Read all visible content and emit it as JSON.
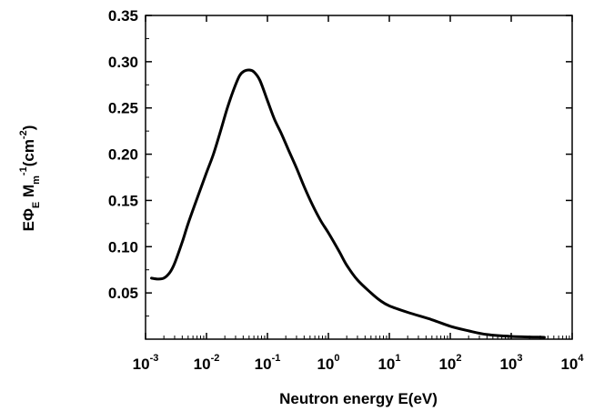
{
  "chart_data": {
    "type": "line",
    "title": "",
    "xlabel": "Neutron energy E(eV)",
    "ylabel_parts": {
      "e": "E",
      "phi": "Φ",
      "phi_sub": "E",
      "m": " M",
      "m_sub": "m",
      "m_sup": "-1",
      "unit_open": "(cm",
      "unit_sup": "-2",
      "unit_close": ")"
    },
    "x_scale": "log",
    "xlim": [
      0.001,
      10000
    ],
    "ylim": [
      0.0,
      0.35
    ],
    "x_ticks": [
      {
        "base": "10",
        "exp": "-3",
        "value": 0.001
      },
      {
        "base": "10",
        "exp": "-2",
        "value": 0.01
      },
      {
        "base": "10",
        "exp": "-1",
        "value": 0.1
      },
      {
        "base": "10",
        "exp": "0",
        "value": 1
      },
      {
        "base": "10",
        "exp": "1",
        "value": 10
      },
      {
        "base": "10",
        "exp": "2",
        "value": 100
      },
      {
        "base": "10",
        "exp": "3",
        "value": 1000
      },
      {
        "base": "10",
        "exp": "4",
        "value": 10000
      }
    ],
    "y_ticks": [
      {
        "label": "0.05",
        "value": 0.05
      },
      {
        "label": "0.10",
        "value": 0.1
      },
      {
        "label": "0.15",
        "value": 0.15
      },
      {
        "label": "0.20",
        "value": 0.2
      },
      {
        "label": "0.25",
        "value": 0.25
      },
      {
        "label": "0.30",
        "value": 0.3
      },
      {
        "label": "0.35",
        "value": 0.35
      }
    ],
    "series": [
      {
        "color": "#000000",
        "points": [
          [
            0.00125,
            0.066
          ],
          [
            0.0016,
            0.065
          ],
          [
            0.002,
            0.066
          ],
          [
            0.0025,
            0.072
          ],
          [
            0.003,
            0.082
          ],
          [
            0.004,
            0.105
          ],
          [
            0.005,
            0.125
          ],
          [
            0.007,
            0.152
          ],
          [
            0.01,
            0.18
          ],
          [
            0.013,
            0.2
          ],
          [
            0.017,
            0.225
          ],
          [
            0.022,
            0.25
          ],
          [
            0.028,
            0.27
          ],
          [
            0.035,
            0.285
          ],
          [
            0.042,
            0.29
          ],
          [
            0.05,
            0.291
          ],
          [
            0.06,
            0.289
          ],
          [
            0.075,
            0.28
          ],
          [
            0.1,
            0.258
          ],
          [
            0.13,
            0.238
          ],
          [
            0.17,
            0.222
          ],
          [
            0.22,
            0.205
          ],
          [
            0.3,
            0.185
          ],
          [
            0.4,
            0.165
          ],
          [
            0.55,
            0.145
          ],
          [
            0.75,
            0.128
          ],
          [
            1.0,
            0.115
          ],
          [
            1.5,
            0.095
          ],
          [
            2.0,
            0.08
          ],
          [
            3.0,
            0.064
          ],
          [
            5.0,
            0.05
          ],
          [
            7.0,
            0.042
          ],
          [
            10,
            0.036
          ],
          [
            20,
            0.029
          ],
          [
            50,
            0.021
          ],
          [
            100,
            0.014
          ],
          [
            200,
            0.009
          ],
          [
            400,
            0.005
          ],
          [
            1000,
            0.003
          ],
          [
            3500,
            0.002
          ]
        ]
      }
    ]
  }
}
